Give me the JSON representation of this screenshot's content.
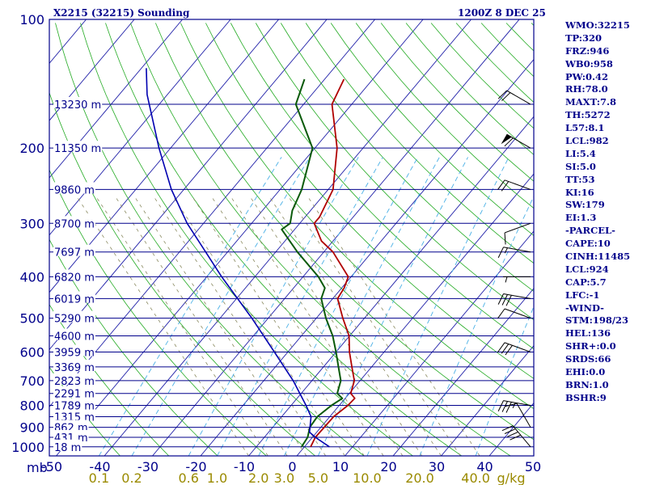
{
  "header": {
    "station": "X2215 (32215) Sounding",
    "time": "1200Z  8 DEC 25"
  },
  "colors": {
    "frame": "#00008b",
    "isobar": "#00008b",
    "isotherm": "#1f1fa8",
    "dry_adiabat": "#22aa22",
    "moist_adiabat": "#22aa22",
    "mixing_ratio": "#4ab0e6",
    "wet_adiabat_dash": "#8a8a60",
    "temperature": "#b00000",
    "dewpoint": "#0a5a0a",
    "parcel": "#0000b0"
  },
  "chart_data": {
    "type": "skew-t",
    "title": "X2215 (32215) Sounding",
    "pressure_axis_label": "mb",
    "pressure_ticks": [
      100,
      200,
      300,
      400,
      500,
      600,
      700,
      800,
      900,
      1000
    ],
    "temperature_ticks": [
      "-50",
      "-40",
      "-30",
      "-20",
      "-10",
      "0",
      "10",
      "20",
      "30",
      "40",
      "50"
    ],
    "temperature_range_c": [
      -50,
      50
    ],
    "pressure_range_mb": [
      100,
      1050
    ],
    "mixing_ratio_ticks": [
      "0.1",
      "0.2",
      "0.6",
      "1.0",
      "2.0",
      "3.0",
      "5.0",
      "10.0",
      "20.0",
      "40.0"
    ],
    "mixing_ratio_unit": "g/kg",
    "height_levels": [
      {
        "p": 158,
        "label": "13230 m"
      },
      {
        "p": 200,
        "label": "11350 m"
      },
      {
        "p": 250,
        "label": "9860 m"
      },
      {
        "p": 300,
        "label": "8700 m"
      },
      {
        "p": 350,
        "label": "7697 m"
      },
      {
        "p": 400,
        "label": "6820 m"
      },
      {
        "p": 450,
        "label": "6019 m"
      },
      {
        "p": 500,
        "label": "5290 m"
      },
      {
        "p": 550,
        "label": "4600 m"
      },
      {
        "p": 600,
        "label": "3959 m"
      },
      {
        "p": 650,
        "label": "3369 m"
      },
      {
        "p": 700,
        "label": "2823 m"
      },
      {
        "p": 750,
        "label": "2291 m"
      },
      {
        "p": 800,
        "label": "1789 m"
      },
      {
        "p": 850,
        "label": "1315 m"
      },
      {
        "p": 900,
        "label": "862 m"
      },
      {
        "p": 950,
        "label": "431 m"
      },
      {
        "p": 1000,
        "label": "18 m"
      }
    ],
    "series": [
      {
        "name": "temperature",
        "points": [
          {
            "p": 1000,
            "t": 1.3
          },
          {
            "p": 950,
            "t": 0.6
          },
          {
            "p": 900,
            "t": 0.7
          },
          {
            "p": 850,
            "t": 0.8
          },
          {
            "p": 800,
            "t": 1.8
          },
          {
            "p": 770,
            "t": 2.0
          },
          {
            "p": 750,
            "t": 0.3
          },
          {
            "p": 700,
            "t": -1.2
          },
          {
            "p": 650,
            "t": -4.1
          },
          {
            "p": 600,
            "t": -7.2
          },
          {
            "p": 550,
            "t": -10.1
          },
          {
            "p": 500,
            "t": -14.5
          },
          {
            "p": 450,
            "t": -19.0
          },
          {
            "p": 425,
            "t": -19.5
          },
          {
            "p": 400,
            "t": -20.6
          },
          {
            "p": 350,
            "t": -28.1
          },
          {
            "p": 330,
            "t": -32.4
          },
          {
            "p": 300,
            "t": -37.0
          },
          {
            "p": 290,
            "t": -37.0
          },
          {
            "p": 250,
            "t": -39.0
          },
          {
            "p": 200,
            "t": -45.4
          },
          {
            "p": 158,
            "t": -54.1
          },
          {
            "p": 138,
            "t": -56.0
          }
        ]
      },
      {
        "name": "dewpoint",
        "points": [
          {
            "p": 1000,
            "t": -0.6
          },
          {
            "p": 950,
            "t": -1.0
          },
          {
            "p": 900,
            "t": -2.3
          },
          {
            "p": 850,
            "t": -2.6
          },
          {
            "p": 800,
            "t": -1.6
          },
          {
            "p": 770,
            "t": -0.6
          },
          {
            "p": 750,
            "t": -2.5
          },
          {
            "p": 700,
            "t": -4.0
          },
          {
            "p": 650,
            "t": -6.9
          },
          {
            "p": 600,
            "t": -10.0
          },
          {
            "p": 550,
            "t": -13.5
          },
          {
            "p": 500,
            "t": -18.0
          },
          {
            "p": 450,
            "t": -22.4
          },
          {
            "p": 425,
            "t": -23.5
          },
          {
            "p": 400,
            "t": -26.8
          },
          {
            "p": 350,
            "t": -35.5
          },
          {
            "p": 310,
            "t": -42.7
          },
          {
            "p": 300,
            "t": -42.0
          },
          {
            "p": 280,
            "t": -43.8
          },
          {
            "p": 250,
            "t": -45.5
          },
          {
            "p": 200,
            "t": -50.5
          },
          {
            "p": 158,
            "t": -61.6
          },
          {
            "p": 138,
            "t": -64.2
          }
        ]
      },
      {
        "name": "parcel",
        "points": [
          {
            "p": 1000,
            "t": 5.2
          },
          {
            "p": 950,
            "t": 0.6
          },
          {
            "p": 924,
            "t": -1.5
          },
          {
            "p": 850,
            "t": -3.9
          },
          {
            "p": 800,
            "t": -6.9
          },
          {
            "p": 700,
            "t": -13.9
          },
          {
            "p": 600,
            "t": -22.8
          },
          {
            "p": 500,
            "t": -33.4
          },
          {
            "p": 400,
            "t": -46.9
          },
          {
            "p": 300,
            "t": -63.4
          },
          {
            "p": 250,
            "t": -72.6
          },
          {
            "p": 200,
            "t": -82.4
          },
          {
            "p": 150,
            "t": -94.2
          },
          {
            "p": 130,
            "t": -99.0
          }
        ]
      }
    ],
    "wind_barbs": [
      {
        "p": 158,
        "dir": 300,
        "kt": 20
      },
      {
        "p": 200,
        "dir": 300,
        "kt": 60
      },
      {
        "p": 250,
        "dir": 290,
        "kt": 20
      },
      {
        "p": 300,
        "dir": 250,
        "kt": 10
      },
      {
        "p": 350,
        "dir": 280,
        "kt": 15
      },
      {
        "p": 400,
        "dir": 270,
        "kt": 5
      },
      {
        "p": 450,
        "dir": 280,
        "kt": 30
      },
      {
        "p": 500,
        "dir": 290,
        "kt": 10
      },
      {
        "p": 600,
        "dir": 290,
        "kt": 30
      },
      {
        "p": 800,
        "dir": 280,
        "kt": 35
      },
      {
        "p": 900,
        "dir": 330,
        "kt": 10
      },
      {
        "p": 1000,
        "dir": 320,
        "kt": 40
      }
    ]
  },
  "stats": [
    "WMO:32215",
    "TP:320",
    "FRZ:946",
    "WB0:958",
    "PW:0.42",
    "RH:78.0",
    "MAXT:7.8",
    "TH:5272",
    "L57:8.1",
    "LCL:982",
    "LI:5.4",
    "SI:5.0",
    "TT:53",
    "KI:16",
    "SW:179",
    "EI:1.3",
    "-PARCEL-",
    "CAPE:10",
    "CINH:11485",
    "LCL:924",
    "CAP:5.7",
    "LFC:-1",
    "-WIND-",
    "STM:198/23",
    "HEL:136",
    "SHR+:0.0",
    "SRDS:66",
    "EHI:0.0",
    "BRN:1.0",
    "BSHR:9"
  ]
}
